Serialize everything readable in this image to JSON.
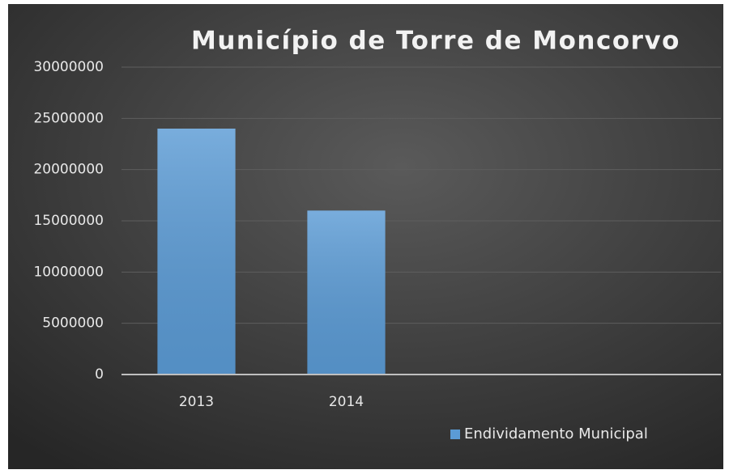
{
  "chart_data": {
    "type": "bar",
    "title": "Município de Torre de Moncorvo",
    "categories": [
      "2013",
      "2014",
      null,
      null
    ],
    "series": [
      {
        "name": "Endividamento Municipal",
        "color": "#5b9bd5",
        "values": [
          24000000,
          16000000,
          null,
          null
        ]
      }
    ],
    "ylim": [
      0,
      30000000
    ],
    "yticks": [
      0,
      5000000,
      10000000,
      15000000,
      20000000,
      25000000,
      30000000
    ],
    "grid": true,
    "legend": "bottom-right"
  }
}
